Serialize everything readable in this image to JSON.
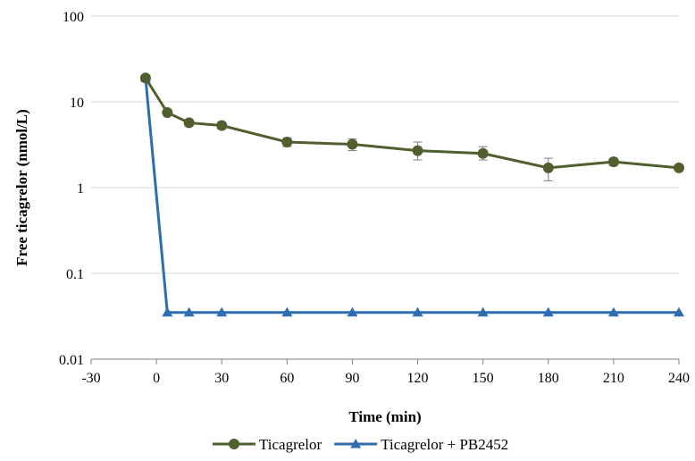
{
  "chart_data": {
    "type": "line",
    "title": "",
    "xlabel": "Time (min)",
    "ylabel": "Free ticagrelor (nmol/L)",
    "xlim": [
      -30,
      240
    ],
    "ylim": [
      0.01,
      100
    ],
    "yscale": "log",
    "grid": "horizontal",
    "legend_position": "bottom",
    "x_ticks": [
      -30,
      0,
      30,
      60,
      90,
      120,
      150,
      180,
      210,
      240
    ],
    "x_tick_labels": [
      "-30",
      "0",
      "30",
      "60",
      "90",
      "120",
      "150",
      "180",
      "210",
      "240"
    ],
    "y_ticks": [
      0.01,
      0.1,
      1,
      10,
      100
    ],
    "y_tick_labels": [
      "0.01",
      "0.1",
      "1",
      "10",
      "100"
    ],
    "series": [
      {
        "name": "Ticagrelor",
        "color": "#4f5f2e",
        "marker": "circle",
        "x": [
          -5,
          5,
          15,
          30,
          60,
          90,
          120,
          150,
          180,
          210,
          240
        ],
        "y": [
          19,
          7.5,
          5.7,
          5.3,
          3.4,
          3.2,
          2.7,
          2.5,
          1.7,
          2.0,
          1.7
        ],
        "err_low": [
          0,
          0,
          0.5,
          0.5,
          0.4,
          0.5,
          0.6,
          0.4,
          0.5,
          0.2,
          0
        ],
        "err_high": [
          0,
          0,
          0.5,
          0.5,
          0.4,
          0.5,
          0.7,
          0.5,
          0.5,
          0.2,
          0
        ]
      },
      {
        "name": "Ticagrelor + PB2452",
        "color": "#2e6db0",
        "marker": "triangle",
        "x": [
          -5,
          5,
          15,
          30,
          60,
          90,
          120,
          150,
          180,
          210,
          240
        ],
        "y": [
          19,
          0.035,
          0.035,
          0.035,
          0.035,
          0.035,
          0.035,
          0.035,
          0.035,
          0.035,
          0.035
        ]
      }
    ]
  }
}
